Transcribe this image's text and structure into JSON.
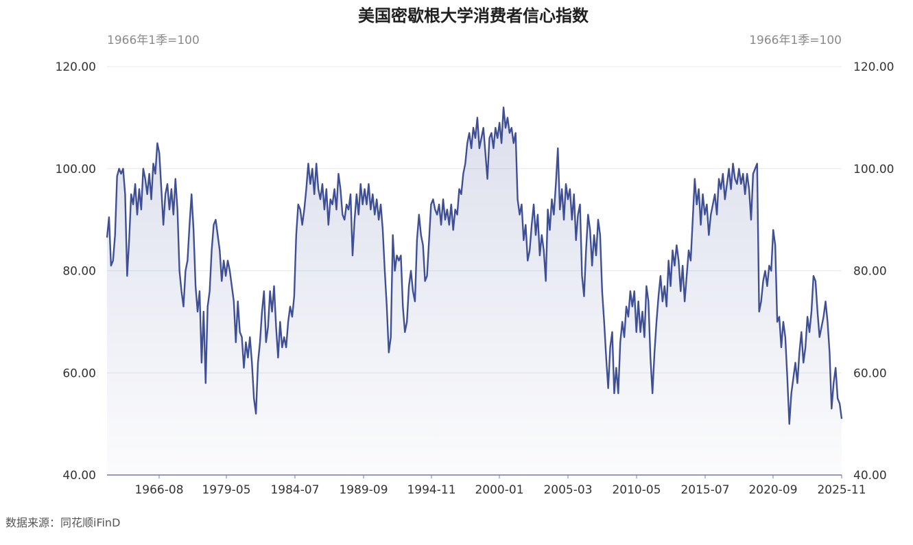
{
  "chart_data": {
    "type": "area",
    "title": "美国密歇根大学消费者信心指数",
    "unit_left": "1966年1季=100",
    "unit_right": "1966年1季=100",
    "source": "数据来源：同花顺iFinD",
    "ylim": [
      40,
      120
    ],
    "y_ticks": [
      "40.00",
      "60.00",
      "80.00",
      "100.00",
      "120.00"
    ],
    "x_ticks": [
      "1966-08",
      "1979-05",
      "1984-07",
      "1989-09",
      "1994-11",
      "2000-01",
      "2005-03",
      "2010-05",
      "2015-07",
      "2020-09",
      "2025-11"
    ],
    "grid": true,
    "line_color": "#3f4f96",
    "series": [
      {
        "values": [
          86.5,
          90.5,
          81.0,
          82.0,
          87.0,
          98.5,
          100.0,
          99.0,
          100.0,
          95.0,
          79.0,
          86.0,
          95.0,
          93.0,
          97.0,
          91.0,
          96.0,
          92.0,
          100.0,
          98.0,
          95.0,
          99.0,
          94.0,
          101.0,
          99.0,
          105.0,
          103.0,
          96.0,
          89.0,
          95.0,
          97.0,
          92.0,
          96.0,
          91.0,
          98.0,
          92.0,
          80.0,
          76.0,
          73.0,
          80.0,
          82.0,
          89.0,
          95.0,
          88.0,
          77.0,
          72.0,
          76.0,
          62.0,
          72.0,
          58.0,
          73.0,
          76.0,
          84.0,
          89.0,
          90.0,
          87.0,
          84.0,
          78.0,
          82.0,
          79.0,
          82.0,
          80.0,
          77.0,
          74.0,
          66.0,
          74.0,
          68.0,
          67.0,
          61.0,
          66.0,
          63.0,
          67.0,
          62.0,
          55.0,
          52.0,
          62.0,
          66.0,
          72.0,
          76.0,
          66.0,
          69.0,
          76.0,
          72.0,
          77.0,
          69.0,
          63.0,
          70.0,
          65.0,
          67.0,
          65.0,
          70.0,
          73.0,
          71.0,
          75.0,
          87.0,
          93.0,
          92.0,
          89.0,
          92.0,
          96.0,
          101.0,
          97.0,
          100.0,
          95.0,
          101.0,
          96.0,
          94.0,
          97.0,
          92.0,
          96.0,
          89.0,
          94.0,
          93.0,
          96.0,
          92.0,
          99.0,
          96.0,
          91.0,
          90.0,
          93.0,
          92.0,
          95.0,
          83.0,
          90.0,
          95.0,
          91.0,
          97.0,
          93.0,
          96.0,
          93.0,
          97.0,
          92.0,
          95.0,
          91.0,
          94.0,
          90.0,
          93.0,
          88.0,
          80.0,
          73.0,
          64.0,
          67.0,
          87.0,
          80.0,
          83.0,
          82.0,
          83.0,
          73.0,
          68.0,
          70.0,
          77.0,
          80.0,
          76.0,
          74.0,
          86.0,
          91.0,
          87.0,
          85.0,
          78.0,
          79.0,
          86.0,
          93.0,
          94.0,
          92.0,
          91.0,
          93.0,
          89.0,
          94.0,
          90.0,
          92.0,
          89.0,
          93.0,
          88.0,
          92.0,
          91.0,
          96.0,
          95.0,
          99.0,
          101.0,
          105.0,
          107.0,
          104.0,
          108.0,
          106.0,
          110.0,
          104.0,
          106.0,
          108.0,
          103.0,
          98.0,
          106.0,
          107.0,
          104.0,
          108.0,
          106.0,
          109.0,
          105.0,
          112.0,
          108.0,
          110.0,
          107.0,
          108.0,
          105.0,
          107.0,
          94.0,
          91.0,
          93.0,
          86.0,
          89.0,
          82.0,
          84.0,
          89.0,
          93.0,
          87.0,
          91.0,
          83.0,
          87.0,
          84.0,
          78.0,
          92.0,
          88.0,
          94.0,
          91.0,
          97.0,
          104.0,
          92.0,
          96.0,
          90.0,
          97.0,
          94.0,
          96.0,
          90.0,
          95.0,
          86.0,
          91.0,
          93.0,
          79.0,
          75.0,
          84.0,
          91.0,
          88.0,
          81.0,
          87.0,
          83.0,
          90.0,
          87.0,
          76.0,
          70.0,
          63.0,
          57.0,
          65.0,
          68.0,
          56.0,
          61.0,
          56.0,
          66.0,
          70.0,
          67.0,
          73.0,
          71.0,
          76.0,
          73.0,
          76.0,
          68.0,
          74.0,
          68.0,
          72.0,
          67.0,
          77.0,
          74.0,
          63.0,
          56.0,
          64.0,
          70.0,
          75.0,
          79.0,
          74.0,
          77.0,
          73.0,
          82.0,
          77.0,
          84.0,
          81.0,
          85.0,
          82.0,
          76.0,
          81.0,
          74.0,
          79.0,
          84.0,
          82.0,
          90.0,
          98.0,
          93.0,
          96.0,
          89.0,
          95.0,
          91.0,
          93.0,
          87.0,
          91.0,
          93.0,
          95.0,
          91.0,
          98.0,
          96.0,
          99.0,
          94.0,
          97.0,
          100.0,
          96.0,
          101.0,
          98.0,
          97.0,
          100.0,
          97.0,
          99.0,
          95.0,
          99.0,
          96.0,
          90.0,
          99.0,
          100.0,
          101.0,
          72.0,
          74.0,
          78.0,
          80.0,
          77.0,
          81.0,
          80.0,
          88.0,
          85.0,
          70.0,
          71.0,
          65.0,
          70.0,
          67.0,
          59.0,
          50.0,
          56.0,
          59.0,
          62.0,
          58.0,
          64.0,
          68.0,
          62.0,
          65.0,
          71.0,
          68.0,
          72.0,
          79.0,
          78.0,
          72.0,
          67.0,
          69.0,
          71.0,
          74.0,
          70.0,
          64.0,
          53.0,
          58.0,
          61.0,
          55.0,
          54.0,
          51.0
        ]
      }
    ]
  }
}
